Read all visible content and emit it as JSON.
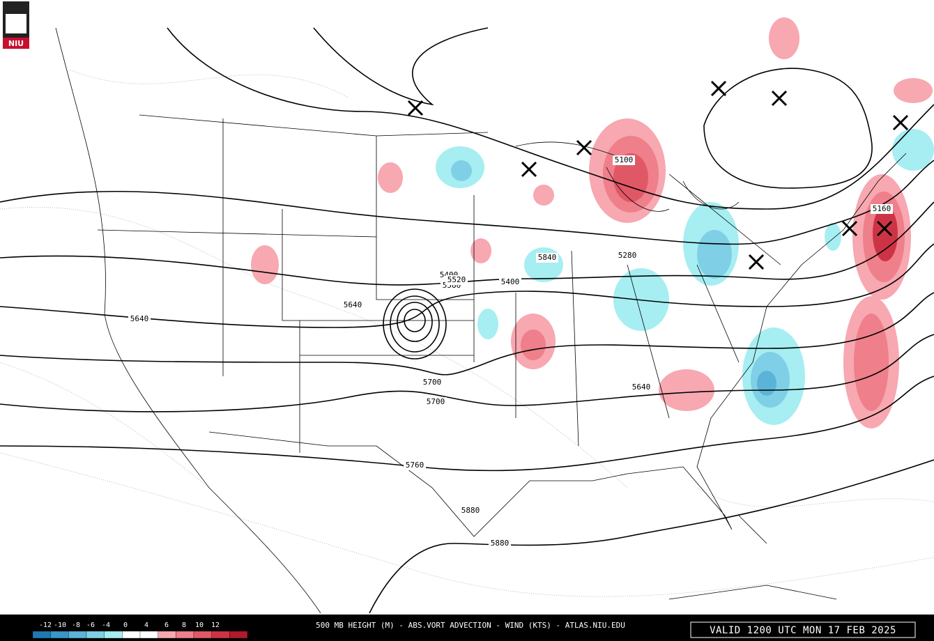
{
  "logo": "NIU",
  "contour_labels": [
    5640,
    5640,
    5640,
    5400,
    5400,
    5280,
    5700,
    5700,
    5760,
    5880,
    5880,
    5100,
    5160,
    5580,
    5520,
    5840
  ],
  "legend": {
    "ticks": [
      -12,
      -10,
      -8,
      -6,
      -4,
      0,
      4,
      6,
      8,
      10,
      12
    ],
    "colors": [
      "#1f78b4",
      "#3a95c8",
      "#5cb3d8",
      "#7fd0e6",
      "#a6eef2",
      "#ffffff",
      "#ffffff",
      "#f7a8b0",
      "#ee7f8b",
      "#e05866",
      "#cc3445",
      "#b01a2c"
    ]
  },
  "caption": "500 MB HEIGHT (M) - ABS.VORT ADVECTION - WIND (KTS) - ATLAS.NIU.EDU",
  "valid": "VALID 1200 UTC MON 17 FEB 2025"
}
